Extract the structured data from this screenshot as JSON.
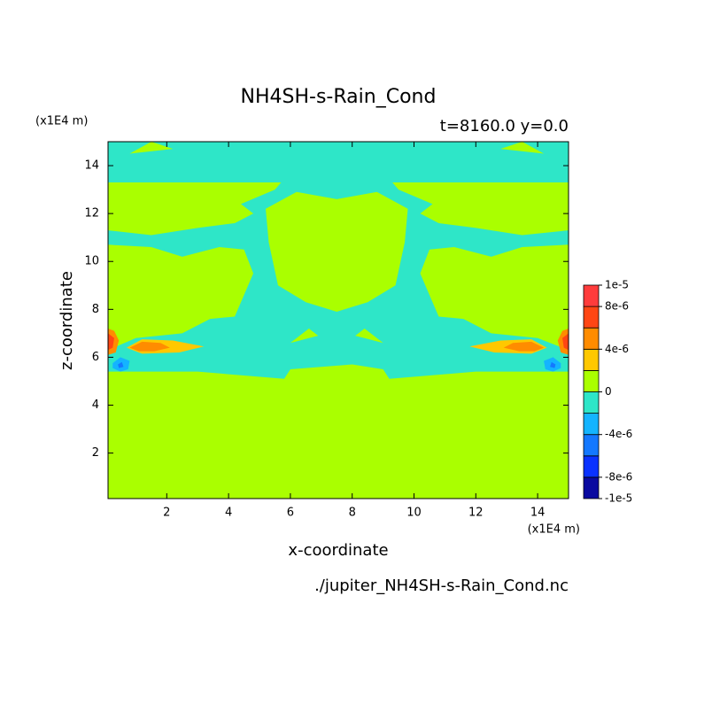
{
  "chart_data": {
    "type": "contour",
    "title": "NH4SH-s-Rain_Cond",
    "subtitle": "t=8160.0 y=0.0",
    "xlabel": "x-coordinate",
    "ylabel": "z-coordinate",
    "xunit": "(x1E4 m)",
    "yunit": "(x1E4 m)",
    "footer": "./jupiter_NH4SH-s-Rain_Cond.nc",
    "xlim": [
      0.1,
      15
    ],
    "ylim": [
      0.1,
      15
    ],
    "xticks": [
      2,
      4,
      6,
      8,
      10,
      12,
      14
    ],
    "yticks": [
      2,
      4,
      6,
      8,
      10,
      12,
      14
    ],
    "background_value": 1e-06,
    "colorbar": {
      "bounds": [
        -1e-05,
        -8e-06,
        -6e-06,
        -4e-06,
        -2e-06,
        0,
        2e-06,
        4e-06,
        6e-06,
        8e-06,
        1e-05
      ],
      "colors": [
        "#0a0aa0",
        "#0a32ff",
        "#1478ff",
        "#14b4ff",
        "#2ee6c8",
        "#aaff00",
        "#ffc800",
        "#ff8c00",
        "#ff4614",
        "#ff3c3c"
      ],
      "ticks": [
        {
          "value": 1e-05,
          "label": "1e-5"
        },
        {
          "value": 8e-06,
          "label": "8e-6"
        },
        {
          "value": 4e-06,
          "label": "4e-6"
        },
        {
          "value": 0,
          "label": "0"
        },
        {
          "value": -4e-06,
          "label": "-4e-6"
        },
        {
          "value": -8e-06,
          "label": "-8e-6"
        },
        {
          "value": -1e-05,
          "label": "-1e-5"
        }
      ]
    },
    "regions": [
      {
        "value": -1e-06,
        "x": [
          0.1,
          3,
          5.8,
          6,
          8,
          9,
          9.2,
          12,
          15,
          15,
          14,
          12.5,
          11.6,
          10.8,
          10.5,
          10.2,
          10.5,
          11.3,
          12.5,
          13.5,
          15,
          15,
          13.5,
          12,
          10.8,
          10.2,
          10.6,
          9.5,
          9.3,
          15,
          15,
          0.1,
          0.1,
          5.7,
          5.5,
          4.4,
          4.8,
          4.2,
          3,
          1.5,
          0.1,
          0.1,
          1.5,
          2.5,
          3.7,
          4.5,
          4.8,
          4.5,
          4.2,
          3.4,
          2.5,
          1,
          0.1
        ],
        "y": [
          5.4,
          5.4,
          5.1,
          5.5,
          5.7,
          5.5,
          5.1,
          5.4,
          5.4,
          6.3,
          6.8,
          7,
          7.6,
          7.7,
          8.6,
          9.5,
          10.5,
          10.6,
          10.2,
          10.6,
          10.7,
          11.3,
          11.1,
          11.4,
          11.6,
          12,
          12.4,
          13,
          13.3,
          13.3,
          15,
          15,
          13.3,
          13.3,
          13,
          12.4,
          12,
          11.6,
          11.4,
          11.1,
          11.3,
          10.7,
          10.6,
          10.2,
          10.6,
          10.5,
          9.5,
          8.6,
          7.7,
          7.6,
          7,
          6.8,
          6.3
        ]
      },
      {
        "value": 1e-06,
        "x": [
          5.6,
          6.5,
          7.5,
          8.5,
          9.4,
          9.7,
          9.8,
          8.8,
          7.5,
          6.2,
          5.2,
          5.3
        ],
        "y": [
          9,
          8.3,
          7.9,
          8.3,
          9,
          10.8,
          12.2,
          12.9,
          12.6,
          12.9,
          12.2,
          10.8
        ]
      },
      {
        "value": 1e-06,
        "x": [
          6,
          6.9,
          6.6
        ],
        "y": [
          6.6,
          6.9,
          7.2
        ]
      },
      {
        "value": 1e-06,
        "x": [
          8.1,
          9,
          8.4
        ],
        "y": [
          6.9,
          6.6,
          7.2
        ]
      },
      {
        "value": 1e-06,
        "x": [
          0.8,
          2.2,
          1.5
        ],
        "y": [
          14.5,
          14.7,
          15
        ]
      },
      {
        "value": 1e-06,
        "x": [
          12.8,
          14.2,
          13.5
        ],
        "y": [
          14.7,
          14.5,
          15
        ]
      },
      {
        "value": 3e-06,
        "x": [
          0.7,
          1.2,
          2.2,
          3.2,
          2.4,
          1.2
        ],
        "y": [
          6.4,
          6.75,
          6.7,
          6.45,
          6.2,
          6.15
        ]
      },
      {
        "value": 3e-06,
        "x": [
          14.3,
          13.8,
          12.8,
          11.8,
          12.6,
          13.8
        ],
        "y": [
          6.4,
          6.75,
          6.7,
          6.45,
          6.2,
          6.15
        ]
      },
      {
        "value": 5e-06,
        "x": [
          0.8,
          1.2,
          1.8,
          2.1,
          1.6,
          1.1
        ],
        "y": [
          6.4,
          6.65,
          6.6,
          6.4,
          6.25,
          6.25
        ]
      },
      {
        "value": 5e-06,
        "x": [
          14.2,
          13.8,
          13.2,
          12.9,
          13.4,
          13.9
        ],
        "y": [
          6.4,
          6.65,
          6.6,
          6.4,
          6.25,
          6.25
        ]
      },
      {
        "value": 5e-06,
        "x": [
          0.1,
          0.3,
          0.45,
          0.35,
          0.1
        ],
        "y": [
          7.2,
          7.1,
          6.7,
          6.2,
          6.1
        ]
      },
      {
        "value": 5e-06,
        "x": [
          15,
          14.8,
          14.65,
          14.75,
          15
        ],
        "y": [
          7.2,
          7.1,
          6.7,
          6.2,
          6.1
        ]
      },
      {
        "value": 7e-06,
        "x": [
          0.1,
          0.3,
          0.25,
          0.1
        ],
        "y": [
          7,
          6.8,
          6.4,
          6.3
        ]
      },
      {
        "value": 7e-06,
        "x": [
          15,
          14.8,
          14.85,
          15
        ],
        "y": [
          7,
          6.8,
          6.4,
          6.3
        ]
      },
      {
        "value": -3e-06,
        "x": [
          0.25,
          0.5,
          0.8,
          0.75,
          0.5,
          0.25
        ],
        "y": [
          5.75,
          6,
          5.85,
          5.5,
          5.4,
          5.55
        ]
      },
      {
        "value": -3e-06,
        "x": [
          14.75,
          14.5,
          14.2,
          14.25,
          14.5,
          14.75
        ],
        "y": [
          5.75,
          6,
          5.85,
          5.5,
          5.4,
          5.55
        ]
      },
      {
        "value": -5e-06,
        "x": [
          0.42,
          0.55,
          0.6,
          0.45
        ],
        "y": [
          5.7,
          5.8,
          5.6,
          5.55
        ]
      },
      {
        "value": -5e-06,
        "x": [
          14.58,
          14.45,
          14.4,
          14.55
        ],
        "y": [
          5.7,
          5.8,
          5.6,
          5.55
        ]
      }
    ]
  }
}
